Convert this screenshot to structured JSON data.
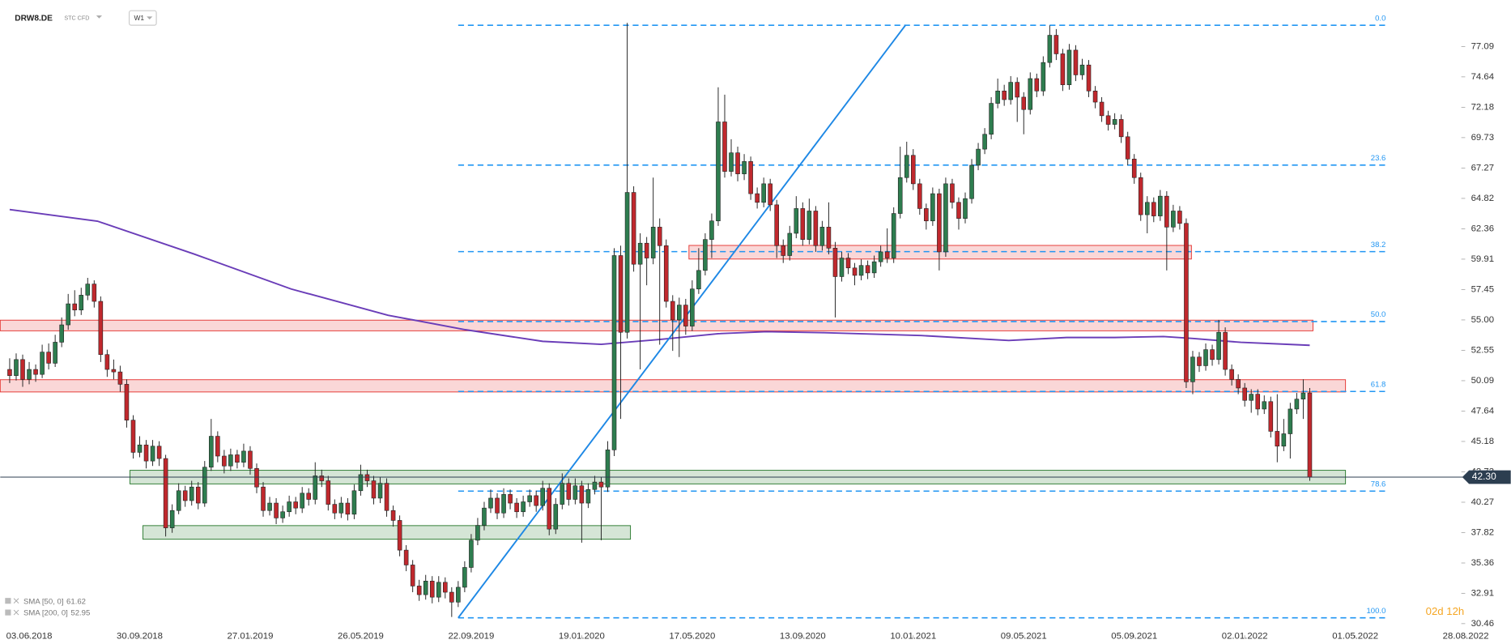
{
  "header": {
    "symbol": "DRW8.DE",
    "instrument_type": "STC CFD",
    "timeframe": "W1"
  },
  "chart_data": {
    "type": "candlestick",
    "up_color": "#2e7d4f",
    "down_color": "#c0282d",
    "xlim": [
      -1.45,
      226
    ],
    "ylim": [
      29.52,
      80.85
    ],
    "xticks": [
      {
        "value": 3,
        "label": "03.06.2018"
      },
      {
        "value": 20,
        "label": "30.09.2018"
      },
      {
        "value": 37,
        "label": "27.01.2019"
      },
      {
        "value": 54,
        "label": "26.05.2019"
      },
      {
        "value": 71,
        "label": "22.09.2019"
      },
      {
        "value": 88,
        "label": "19.01.2020"
      },
      {
        "value": 105,
        "label": "17.05.2020"
      },
      {
        "value": 122,
        "label": "13.09.2020"
      },
      {
        "value": 139,
        "label": "10.01.2021"
      },
      {
        "value": 156,
        "label": "09.05.2021"
      },
      {
        "value": 173,
        "label": "05.09.2021"
      },
      {
        "value": 190,
        "label": "02.01.2022"
      },
      {
        "value": 207,
        "label": "01.05.2022"
      },
      {
        "value": 224,
        "label": "28.08.2022"
      }
    ],
    "yticks": [
      77.09,
      74.64,
      72.18,
      69.73,
      67.27,
      64.82,
      62.36,
      59.91,
      57.45,
      {
        "value": 55,
        "label": "55.00"
      },
      52.55,
      50.09,
      47.64,
      45.18,
      42.73,
      40.27,
      37.82,
      35.36,
      32.91,
      30.46
    ],
    "ohlc": [
      [
        51.0,
        51.9,
        49.9,
        50.5
      ],
      [
        50.5,
        52.3,
        50.1,
        51.8
      ],
      [
        51.8,
        52.2,
        49.6,
        50.2
      ],
      [
        50.2,
        51.6,
        49.8,
        51.0
      ],
      [
        51.0,
        51.4,
        50.0,
        50.6
      ],
      [
        50.6,
        53.0,
        50.3,
        52.4
      ],
      [
        52.4,
        53.1,
        51.0,
        51.5
      ],
      [
        51.5,
        53.8,
        51.2,
        53.2
      ],
      [
        53.2,
        55.2,
        52.8,
        54.6
      ],
      [
        54.6,
        57.1,
        54.2,
        56.3
      ],
      [
        56.3,
        57.4,
        55.3,
        55.8
      ],
      [
        55.8,
        57.6,
        55.4,
        57.0
      ],
      [
        57.0,
        58.4,
        56.6,
        57.9
      ],
      [
        57.9,
        58.2,
        56.0,
        56.5
      ],
      [
        56.5,
        56.9,
        51.6,
        52.2
      ],
      [
        52.2,
        52.6,
        50.4,
        51.0
      ],
      [
        51.0,
        51.8,
        50.2,
        50.8
      ],
      [
        50.8,
        51.3,
        49.2,
        49.8
      ],
      [
        49.8,
        50.2,
        46.3,
        46.9
      ],
      [
        46.9,
        47.3,
        43.8,
        44.3
      ],
      [
        44.3,
        45.6,
        43.9,
        44.9
      ],
      [
        44.9,
        45.3,
        43.0,
        43.6
      ],
      [
        43.6,
        45.3,
        43.2,
        44.8
      ],
      [
        44.8,
        45.2,
        43.2,
        43.8
      ],
      [
        43.8,
        44.1,
        37.5,
        38.2
      ],
      [
        38.2,
        40.1,
        37.8,
        39.6
      ],
      [
        39.6,
        41.8,
        39.3,
        41.2
      ],
      [
        41.2,
        41.6,
        39.9,
        40.4
      ],
      [
        40.4,
        42.0,
        40.0,
        41.5
      ],
      [
        41.5,
        41.9,
        39.7,
        40.2
      ],
      [
        40.2,
        43.6,
        39.9,
        43.1
      ],
      [
        43.1,
        47.0,
        42.8,
        45.6
      ],
      [
        45.6,
        46.0,
        43.5,
        44.0
      ],
      [
        44.0,
        44.5,
        42.6,
        43.2
      ],
      [
        43.2,
        44.6,
        42.8,
        44.1
      ],
      [
        44.1,
        44.5,
        43.0,
        43.5
      ],
      [
        43.5,
        45.0,
        43.1,
        44.4
      ],
      [
        44.4,
        44.8,
        42.5,
        43.0
      ],
      [
        43.0,
        43.4,
        41.0,
        41.5
      ],
      [
        41.5,
        41.9,
        39.1,
        39.6
      ],
      [
        39.6,
        40.7,
        39.2,
        40.2
      ],
      [
        40.2,
        40.6,
        38.5,
        39.0
      ],
      [
        39.0,
        40.0,
        38.6,
        39.5
      ],
      [
        39.5,
        40.8,
        39.1,
        40.3
      ],
      [
        40.3,
        40.7,
        39.3,
        39.8
      ],
      [
        39.8,
        41.5,
        39.4,
        41.0
      ],
      [
        41.0,
        41.4,
        40.0,
        40.5
      ],
      [
        40.5,
        43.5,
        40.1,
        42.4
      ],
      [
        42.4,
        42.9,
        41.5,
        42.0
      ],
      [
        42.0,
        42.4,
        39.6,
        40.1
      ],
      [
        40.1,
        40.5,
        38.9,
        39.4
      ],
      [
        39.4,
        40.7,
        39.0,
        40.2
      ],
      [
        40.2,
        40.6,
        38.8,
        39.3
      ],
      [
        39.3,
        41.7,
        38.9,
        41.2
      ],
      [
        41.2,
        43.3,
        40.8,
        42.5
      ],
      [
        42.5,
        42.9,
        41.5,
        42.0
      ],
      [
        42.0,
        42.4,
        40.1,
        40.6
      ],
      [
        40.6,
        42.3,
        40.2,
        41.8
      ],
      [
        41.8,
        42.2,
        39.1,
        39.6
      ],
      [
        39.6,
        40.0,
        38.3,
        38.8
      ],
      [
        38.8,
        39.2,
        35.9,
        36.4
      ],
      [
        36.4,
        36.8,
        34.7,
        35.2
      ],
      [
        35.2,
        35.6,
        33.0,
        33.5
      ],
      [
        33.5,
        34.0,
        32.3,
        32.8
      ],
      [
        32.8,
        34.4,
        32.4,
        33.9
      ],
      [
        33.9,
        34.3,
        32.1,
        32.6
      ],
      [
        32.6,
        34.3,
        32.2,
        33.8
      ],
      [
        33.8,
        34.2,
        32.5,
        33.0
      ],
      [
        33.0,
        33.4,
        31.0,
        32.2
      ],
      [
        32.2,
        33.9,
        31.8,
        33.4
      ],
      [
        33.4,
        35.5,
        33.0,
        35.0
      ],
      [
        35.0,
        37.7,
        34.6,
        37.2
      ],
      [
        37.2,
        39.0,
        36.8,
        38.4
      ],
      [
        38.4,
        40.3,
        38.0,
        39.8
      ],
      [
        39.8,
        41.3,
        39.4,
        40.6
      ],
      [
        40.6,
        41.0,
        38.9,
        39.4
      ],
      [
        39.4,
        41.4,
        39.0,
        40.9
      ],
      [
        40.9,
        41.3,
        39.7,
        40.2
      ],
      [
        40.2,
        40.6,
        39.0,
        39.5
      ],
      [
        39.5,
        40.8,
        39.1,
        40.3
      ],
      [
        40.3,
        41.3,
        39.9,
        40.8
      ],
      [
        40.8,
        41.2,
        39.5,
        40.0
      ],
      [
        40.0,
        42.0,
        39.6,
        41.4
      ],
      [
        41.4,
        41.8,
        37.6,
        38.1
      ],
      [
        38.1,
        40.6,
        37.7,
        40.1
      ],
      [
        40.1,
        42.6,
        39.7,
        41.8
      ],
      [
        41.8,
        42.2,
        40.0,
        40.5
      ],
      [
        40.5,
        42.2,
        40.1,
        41.6
      ],
      [
        41.6,
        42.0,
        37.0,
        40.2
      ],
      [
        40.2,
        41.8,
        39.8,
        41.3
      ],
      [
        41.3,
        42.4,
        40.9,
        41.9
      ],
      [
        41.9,
        42.3,
        37.2,
        41.5
      ],
      [
        41.5,
        45.2,
        41.1,
        44.5
      ],
      [
        44.5,
        60.8,
        44.0,
        60.2
      ],
      [
        60.2,
        61.0,
        47.0,
        54.0
      ],
      [
        54.0,
        79.0,
        53.5,
        65.3
      ],
      [
        65.3,
        65.8,
        58.9,
        59.5
      ],
      [
        59.5,
        62.0,
        51.0,
        61.2
      ],
      [
        61.2,
        61.7,
        57.8,
        60.0
      ],
      [
        60.0,
        66.5,
        59.5,
        62.5
      ],
      [
        62.5,
        63.2,
        53.0,
        61.0
      ],
      [
        61.0,
        61.5,
        56.0,
        56.5
      ],
      [
        56.5,
        57.0,
        52.5,
        55.0
      ],
      [
        55.0,
        56.8,
        52.0,
        56.2
      ],
      [
        56.2,
        56.7,
        53.8,
        54.5
      ],
      [
        54.5,
        58.2,
        54.1,
        57.5
      ],
      [
        57.5,
        60.8,
        57.1,
        59.0
      ],
      [
        59.0,
        62.0,
        58.6,
        61.5
      ],
      [
        61.5,
        63.6,
        60.0,
        63.0
      ],
      [
        63.0,
        73.8,
        62.6,
        71.0
      ],
      [
        71.0,
        73.2,
        66.5,
        67.0
      ],
      [
        67.0,
        69.6,
        66.6,
        68.5
      ],
      [
        68.5,
        69.0,
        66.2,
        66.8
      ],
      [
        66.8,
        68.4,
        66.3,
        67.8
      ],
      [
        67.8,
        68.2,
        64.7,
        65.2
      ],
      [
        65.2,
        65.7,
        64.0,
        64.5
      ],
      [
        64.5,
        66.5,
        64.1,
        66.0
      ],
      [
        66.0,
        66.4,
        63.8,
        64.3
      ],
      [
        64.3,
        64.7,
        60.0,
        61.0
      ],
      [
        61.0,
        61.5,
        59.6,
        60.2
      ],
      [
        60.2,
        62.6,
        59.8,
        62.0
      ],
      [
        62.0,
        65.0,
        61.6,
        64.0
      ],
      [
        64.0,
        64.5,
        61.0,
        61.5
      ],
      [
        61.5,
        64.8,
        61.1,
        63.8
      ],
      [
        63.8,
        64.2,
        60.5,
        61.0
      ],
      [
        61.0,
        63.0,
        60.6,
        62.5
      ],
      [
        62.5,
        64.5,
        60.3,
        60.8
      ],
      [
        60.8,
        61.3,
        55.2,
        58.5
      ],
      [
        58.5,
        60.5,
        58.1,
        60.0
      ],
      [
        60.0,
        60.4,
        58.7,
        59.2
      ],
      [
        59.2,
        59.6,
        57.8,
        58.6
      ],
      [
        58.6,
        59.9,
        58.2,
        59.4
      ],
      [
        59.4,
        59.8,
        58.3,
        58.8
      ],
      [
        58.8,
        60.2,
        58.4,
        59.7
      ],
      [
        59.7,
        61.0,
        59.3,
        60.5
      ],
      [
        60.5,
        62.4,
        59.6,
        60.0
      ],
      [
        60.0,
        64.1,
        59.6,
        63.6
      ],
      [
        63.6,
        69.0,
        63.2,
        66.5
      ],
      [
        66.5,
        69.4,
        66.1,
        68.3
      ],
      [
        68.3,
        68.8,
        65.5,
        66.0
      ],
      [
        66.0,
        66.4,
        63.5,
        64.0
      ],
      [
        64.0,
        64.4,
        62.3,
        63.0
      ],
      [
        63.0,
        65.7,
        62.6,
        65.2
      ],
      [
        65.2,
        65.6,
        59.0,
        60.5
      ],
      [
        60.5,
        66.5,
        60.1,
        66.0
      ],
      [
        66.0,
        66.4,
        64.0,
        64.5
      ],
      [
        64.5,
        64.9,
        62.3,
        63.2
      ],
      [
        63.2,
        65.3,
        62.8,
        64.8
      ],
      [
        64.8,
        68.0,
        64.4,
        67.5
      ],
      [
        67.5,
        69.3,
        67.1,
        68.8
      ],
      [
        68.8,
        70.5,
        68.4,
        70.0
      ],
      [
        70.0,
        73.0,
        69.6,
        72.5
      ],
      [
        72.5,
        74.5,
        72.1,
        73.5
      ],
      [
        73.5,
        74.0,
        72.3,
        72.8
      ],
      [
        72.8,
        74.7,
        72.4,
        74.2
      ],
      [
        74.2,
        74.6,
        71.0,
        73.0
      ],
      [
        73.0,
        73.4,
        70.0,
        72.0
      ],
      [
        72.0,
        75.0,
        71.6,
        74.5
      ],
      [
        74.5,
        74.9,
        73.0,
        73.5
      ],
      [
        73.5,
        76.3,
        73.1,
        75.8
      ],
      [
        75.8,
        78.8,
        75.4,
        78.0
      ],
      [
        78.0,
        78.5,
        76.0,
        76.5
      ],
      [
        76.5,
        76.9,
        73.5,
        74.0
      ],
      [
        74.0,
        77.3,
        73.6,
        76.8
      ],
      [
        76.8,
        77.2,
        74.3,
        74.8
      ],
      [
        74.8,
        76.1,
        74.4,
        75.6
      ],
      [
        75.6,
        76.0,
        73.0,
        73.5
      ],
      [
        73.5,
        73.9,
        72.1,
        72.6
      ],
      [
        72.6,
        73.0,
        71.0,
        71.5
      ],
      [
        71.5,
        71.9,
        70.3,
        70.8
      ],
      [
        70.8,
        71.7,
        70.4,
        71.2
      ],
      [
        71.2,
        71.6,
        69.3,
        69.8
      ],
      [
        69.8,
        70.2,
        67.5,
        68.0
      ],
      [
        68.0,
        68.4,
        66.0,
        66.5
      ],
      [
        66.5,
        66.9,
        63.0,
        63.5
      ],
      [
        63.5,
        65.0,
        62.0,
        64.5
      ],
      [
        64.5,
        64.9,
        62.9,
        63.4
      ],
      [
        63.4,
        65.5,
        63.0,
        65.0
      ],
      [
        65.0,
        65.4,
        59.0,
        62.5
      ],
      [
        62.5,
        64.3,
        62.1,
        63.8
      ],
      [
        63.8,
        64.2,
        62.3,
        62.8
      ],
      [
        62.8,
        63.2,
        49.5,
        50.0
      ],
      [
        50.0,
        52.5,
        49.0,
        52.0
      ],
      [
        52.0,
        52.4,
        50.8,
        51.3
      ],
      [
        51.3,
        53.1,
        50.9,
        52.6
      ],
      [
        52.6,
        53.0,
        51.3,
        51.8
      ],
      [
        51.8,
        55.0,
        51.4,
        54.0
      ],
      [
        54.0,
        54.4,
        50.5,
        51.0
      ],
      [
        51.0,
        51.4,
        49.7,
        50.2
      ],
      [
        50.2,
        50.6,
        49.0,
        49.5
      ],
      [
        49.5,
        49.9,
        48.0,
        48.5
      ],
      [
        48.5,
        49.4,
        47.5,
        49.0
      ],
      [
        49.0,
        49.4,
        47.3,
        47.8
      ],
      [
        47.8,
        48.9,
        47.4,
        48.4
      ],
      [
        48.4,
        48.8,
        45.5,
        46.0
      ],
      [
        46.0,
        49.0,
        43.5,
        44.8
      ],
      [
        44.8,
        47.0,
        44.4,
        45.8
      ],
      [
        45.8,
        48.3,
        43.8,
        47.8
      ],
      [
        47.8,
        49.1,
        47.4,
        48.6
      ],
      [
        48.6,
        50.2,
        47.0,
        49.1
      ],
      [
        49.1,
        49.5,
        42.0,
        42.3
      ]
    ],
    "zones": [
      {
        "x": [
          -1.45,
          200.5
        ],
        "values": [
          54.12,
          54.98
        ],
        "color": "#e53935"
      },
      {
        "x": [
          -1.45,
          205.5
        ],
        "values": [
          49.18,
          50.17
        ],
        "color": "#e53935"
      },
      {
        "x": [
          104.5,
          181.8
        ],
        "values": [
          59.92,
          61.02
        ],
        "color": "#e53935"
      },
      {
        "x": [
          18.5,
          205.5
        ],
        "values": [
          41.75,
          42.85
        ],
        "color": "#2e7d32"
      },
      {
        "x": [
          20.5,
          95.5
        ],
        "values": [
          37.28,
          38.38
        ],
        "color": "#2e7d32"
      }
    ],
    "fibonacci": {
      "color": "#2196f3",
      "start": 69,
      "end": 212,
      "levels": [
        {
          "label": "0.0",
          "value": 78.81
        },
        {
          "label": "23.6",
          "value": 67.51
        },
        {
          "label": "38.2",
          "value": 60.52
        },
        {
          "label": "50.0",
          "value": 54.87
        },
        {
          "label": "61.8",
          "value": 49.22
        },
        {
          "label": "78.6",
          "value": 41.17
        },
        {
          "label": "100.0",
          "value": 30.93
        }
      ]
    },
    "trend_line": {
      "color": "#1e88e5",
      "x": [
        69,
        137.8
      ],
      "values": [
        30.93,
        78.81
      ]
    },
    "sma200": {
      "color": "#6a3db8",
      "x": [
        0,
        13.5,
        28.4,
        43.3,
        58.2,
        70.1,
        82,
        91,
        100,
        109,
        116.4,
        125.3,
        140.2,
        153.7,
        162.6,
        170,
        177.5,
        182,
        189.4,
        200
      ],
      "values": [
        63.92,
        62.98,
        60.32,
        57.5,
        55.38,
        54.21,
        53.27,
        53.03,
        53.42,
        53.89,
        54.05,
        53.97,
        53.74,
        53.34,
        53.58,
        53.58,
        53.66,
        53.5,
        53.19,
        52.95
      ]
    },
    "last_price": {
      "value": 42.3,
      "label": "42.30",
      "color": "#2c3e50"
    },
    "indicators": [
      {
        "label": "SMA [50, 0]",
        "value": 61.62
      },
      {
        "label": "SMA [200, 0]",
        "value": 52.95
      }
    ],
    "countdown": "02d 12h"
  }
}
